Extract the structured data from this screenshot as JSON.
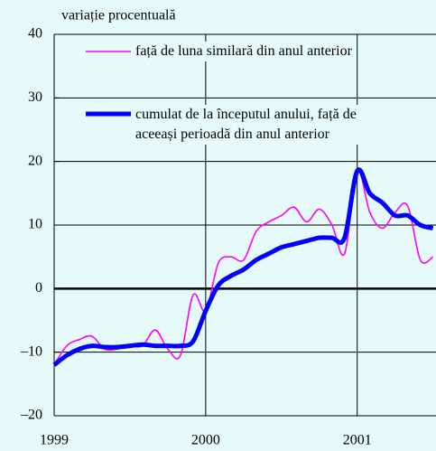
{
  "chart_data": {
    "type": "line",
    "ylabel": "variație procentuală",
    "x": [
      1999.0,
      1999.0833,
      1999.1667,
      1999.25,
      1999.3333,
      1999.4167,
      1999.5,
      1999.5833,
      1999.6667,
      1999.75,
      1999.8333,
      1999.9167,
      2000.0,
      2000.0833,
      2000.1667,
      2000.25,
      2000.3333,
      2000.4167,
      2000.5,
      2000.5833,
      2000.6667,
      2000.75,
      2000.8333,
      2000.9167,
      2001.0,
      2001.0833,
      2001.1667,
      2001.25,
      2001.3333,
      2001.4167,
      2001.5
    ],
    "series": [
      {
        "name": "față de luna similară din anul anterior",
        "color": "#ff00ff",
        "values": [
          -12,
          -9,
          -8,
          -7.5,
          -9.5,
          -9.5,
          -9,
          -9,
          -6.5,
          -9.5,
          -10.5,
          -1,
          -3.5,
          4,
          5,
          4.5,
          9,
          10.5,
          11.5,
          12.8,
          10.5,
          12.5,
          10,
          5.5,
          18.5,
          12,
          9.5,
          12,
          13,
          4.5,
          5
        ]
      },
      {
        "name": "cumulat de la începutul anului, față de aceeași perioadă din anul anterior",
        "color": "#0000ff",
        "values": [
          -12,
          -10.5,
          -9.5,
          -9,
          -9.2,
          -9.2,
          -9,
          -8.8,
          -9,
          -9,
          -9,
          -8.3,
          -3.5,
          0.5,
          2,
          3,
          4.5,
          5.5,
          6.5,
          7,
          7.5,
          8,
          8,
          8,
          18.5,
          15,
          13.5,
          11.5,
          11.5,
          10,
          9.5
        ]
      }
    ],
    "xlim": [
      1999,
      2001.52
    ],
    "xticks": [
      1999,
      2000,
      2001
    ],
    "ylim": [
      -20,
      40
    ],
    "yticks": [
      {
        "value": -20,
        "label": "–20"
      },
      {
        "value": -10,
        "label": "–10"
      },
      0,
      10,
      20,
      30,
      40
    ],
    "grid": true
  }
}
